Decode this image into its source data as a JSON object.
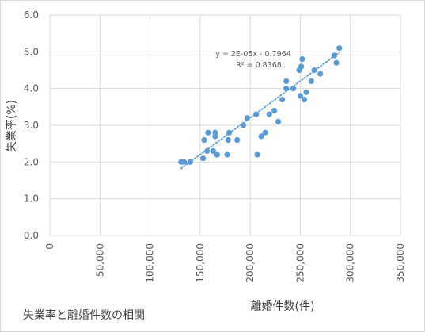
{
  "caption": "失業率と離婚件数の相関",
  "chart_data": {
    "type": "scatter",
    "xlabel": "離婚件数(件)",
    "ylabel": "失業率(%)",
    "xlim": [
      0,
      350000
    ],
    "ylim": [
      0,
      6
    ],
    "x_ticks": [
      "0",
      "50,000",
      "100,000",
      "150,000",
      "200,000",
      "250,000",
      "300,000",
      "350,000"
    ],
    "y_ticks": [
      "0.0",
      "1.0",
      "2.0",
      "3.0",
      "4.0",
      "5.0",
      "6.0"
    ],
    "grid": true,
    "marker_color": "#5b9bd5",
    "trendline": {
      "equation": "y = 2E-05x - 0.7964",
      "r_squared": "R² = 0.8368",
      "style": "dotted",
      "color": "#5b9bd5"
    },
    "points": [
      {
        "x": 131000,
        "y": 2.0
      },
      {
        "x": 134000,
        "y": 2.0
      },
      {
        "x": 140000,
        "y": 2.0
      },
      {
        "x": 153000,
        "y": 2.1
      },
      {
        "x": 154000,
        "y": 2.6
      },
      {
        "x": 157000,
        "y": 2.3
      },
      {
        "x": 158000,
        "y": 2.8
      },
      {
        "x": 163000,
        "y": 2.3
      },
      {
        "x": 165000,
        "y": 2.7
      },
      {
        "x": 165000,
        "y": 2.8
      },
      {
        "x": 167000,
        "y": 2.2
      },
      {
        "x": 177000,
        "y": 2.2
      },
      {
        "x": 178000,
        "y": 2.6
      },
      {
        "x": 179000,
        "y": 2.8
      },
      {
        "x": 187000,
        "y": 2.6
      },
      {
        "x": 193000,
        "y": 3.0
      },
      {
        "x": 197000,
        "y": 3.2
      },
      {
        "x": 206000,
        "y": 3.3
      },
      {
        "x": 207000,
        "y": 2.2
      },
      {
        "x": 211000,
        "y": 2.7
      },
      {
        "x": 215000,
        "y": 2.8
      },
      {
        "x": 219000,
        "y": 3.3
      },
      {
        "x": 224000,
        "y": 3.4
      },
      {
        "x": 228000,
        "y": 3.1
      },
      {
        "x": 232000,
        "y": 3.7
      },
      {
        "x": 236000,
        "y": 4.0
      },
      {
        "x": 236000,
        "y": 4.2
      },
      {
        "x": 243000,
        "y": 4.0
      },
      {
        "x": 249000,
        "y": 4.5
      },
      {
        "x": 250000,
        "y": 3.8
      },
      {
        "x": 251000,
        "y": 4.6
      },
      {
        "x": 252000,
        "y": 4.8
      },
      {
        "x": 254000,
        "y": 3.7
      },
      {
        "x": 256000,
        "y": 3.9
      },
      {
        "x": 261000,
        "y": 4.2
      },
      {
        "x": 264000,
        "y": 4.5
      },
      {
        "x": 270000,
        "y": 4.4
      },
      {
        "x": 284000,
        "y": 4.9
      },
      {
        "x": 286000,
        "y": 4.7
      },
      {
        "x": 289000,
        "y": 5.1
      }
    ]
  }
}
